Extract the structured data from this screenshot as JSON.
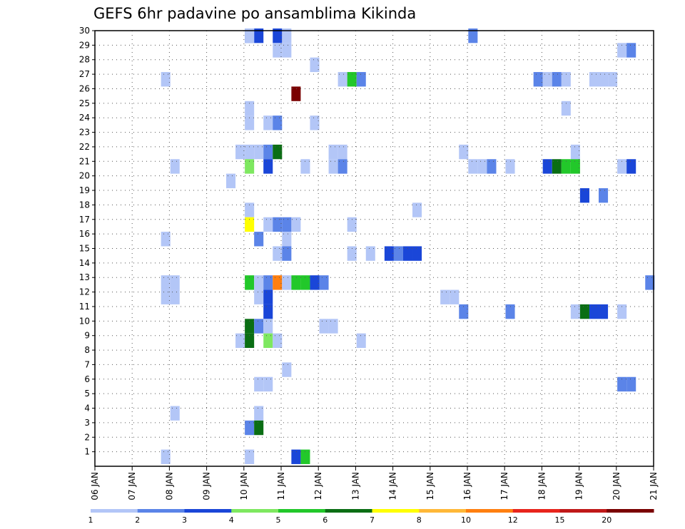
{
  "chart_data": {
    "type": "heatmap",
    "title": "GEFS 6hr padavine po ansamblima Kikinda",
    "xlabel": "",
    "ylabel": "",
    "x_ticks": [
      "06 JAN",
      "07 JAN",
      "08 JAN",
      "09 JAN",
      "10 JAN",
      "11 JAN",
      "12 JAN",
      "13 JAN",
      "14 JAN",
      "15 JAN",
      "16 JAN",
      "17 JAN",
      "18 JAN",
      "19 JAN",
      "20 JAN",
      "21 JAN"
    ],
    "y_ticks": [
      "1",
      "2",
      "3",
      "4",
      "5",
      "6",
      "7",
      "8",
      "9",
      "10",
      "11",
      "12",
      "13",
      "14",
      "15",
      "16",
      "17",
      "18",
      "19",
      "20",
      "21",
      "22",
      "23",
      "24",
      "25",
      "26",
      "27",
      "28",
      "29",
      "30"
    ],
    "xlim_steps": [
      0,
      60
    ],
    "ylim": [
      0,
      30
    ],
    "grid": true,
    "colorbar": {
      "labels": [
        "1",
        "2",
        "3",
        "4",
        "5",
        "6",
        "7",
        "8",
        "10",
        "12",
        "15",
        "20"
      ],
      "colors": [
        "#b3c6f7",
        "#5b84e8",
        "#1a46d8",
        "#7ee860",
        "#22c82a",
        "#0a6e14",
        "#ffff00",
        "#ffb838",
        "#ff7f10",
        "#e8241c",
        "#c01818",
        "#7a0000"
      ]
    },
    "cells": [
      [
        17,
        30,
        3
      ],
      [
        19,
        30,
        3
      ],
      [
        16,
        30,
        2
      ],
      [
        16,
        30,
        1
      ],
      [
        20,
        30,
        1
      ],
      [
        40,
        30,
        2
      ],
      [
        19,
        29,
        1
      ],
      [
        20,
        29,
        1
      ],
      [
        56,
        29,
        1
      ],
      [
        57,
        29,
        2
      ],
      [
        23,
        28,
        1
      ],
      [
        7,
        27,
        1
      ],
      [
        26,
        27,
        1
      ],
      [
        27,
        27,
        5
      ],
      [
        28,
        27,
        2
      ],
      [
        47,
        27,
        2
      ],
      [
        48,
        27,
        1
      ],
      [
        49,
        27,
        2
      ],
      [
        50,
        27,
        1
      ],
      [
        53,
        27,
        1
      ],
      [
        54,
        27,
        1
      ],
      [
        55,
        27,
        1
      ],
      [
        21,
        26,
        12
      ],
      [
        16,
        25,
        1
      ],
      [
        50,
        25,
        1
      ],
      [
        16,
        24,
        1
      ],
      [
        18,
        24,
        1
      ],
      [
        19,
        24,
        2
      ],
      [
        23,
        24,
        1
      ],
      [
        15,
        22,
        1
      ],
      [
        16,
        22,
        1
      ],
      [
        17,
        22,
        1
      ],
      [
        18,
        22,
        2
      ],
      [
        19,
        22,
        6
      ],
      [
        25,
        22,
        1
      ],
      [
        26,
        22,
        1
      ],
      [
        39,
        22,
        1
      ],
      [
        51,
        22,
        1
      ],
      [
        8,
        21,
        1
      ],
      [
        16,
        21,
        4
      ],
      [
        18,
        21,
        3
      ],
      [
        22,
        21,
        1
      ],
      [
        25,
        21,
        1
      ],
      [
        26,
        21,
        2
      ],
      [
        40,
        21,
        1
      ],
      [
        41,
        21,
        1
      ],
      [
        42,
        21,
        2
      ],
      [
        44,
        21,
        1
      ],
      [
        48,
        21,
        3
      ],
      [
        49,
        21,
        6
      ],
      [
        50,
        21,
        5
      ],
      [
        51,
        21,
        5
      ],
      [
        56,
        21,
        1
      ],
      [
        57,
        21,
        3
      ],
      [
        14,
        20,
        1
      ],
      [
        52,
        19,
        3
      ],
      [
        54,
        19,
        2
      ],
      [
        16,
        18,
        1
      ],
      [
        34,
        18,
        1
      ],
      [
        16,
        17,
        7
      ],
      [
        18,
        17,
        1
      ],
      [
        19,
        17,
        2
      ],
      [
        20,
        17,
        2
      ],
      [
        21,
        17,
        1
      ],
      [
        27,
        17,
        1
      ],
      [
        7,
        16,
        1
      ],
      [
        17,
        16,
        2
      ],
      [
        20,
        16,
        1
      ],
      [
        19,
        15,
        1
      ],
      [
        20,
        15,
        2
      ],
      [
        27,
        15,
        1
      ],
      [
        29,
        15,
        1
      ],
      [
        31,
        15,
        3
      ],
      [
        32,
        15,
        2
      ],
      [
        33,
        15,
        3
      ],
      [
        34,
        15,
        3
      ],
      [
        7,
        13,
        1
      ],
      [
        8,
        13,
        1
      ],
      [
        16,
        13,
        5
      ],
      [
        17,
        13,
        1
      ],
      [
        18,
        13,
        2
      ],
      [
        19,
        13,
        9
      ],
      [
        20,
        13,
        1
      ],
      [
        21,
        13,
        5
      ],
      [
        22,
        13,
        5
      ],
      [
        23,
        13,
        3
      ],
      [
        24,
        13,
        2
      ],
      [
        59,
        13,
        2
      ],
      [
        7,
        12,
        1
      ],
      [
        8,
        12,
        1
      ],
      [
        17,
        12,
        1
      ],
      [
        18,
        12,
        3
      ],
      [
        37,
        12,
        1
      ],
      [
        38,
        12,
        1
      ],
      [
        18,
        11,
        3
      ],
      [
        39,
        11,
        2
      ],
      [
        44,
        11,
        2
      ],
      [
        51,
        11,
        1
      ],
      [
        52,
        11,
        6
      ],
      [
        53,
        11,
        3
      ],
      [
        54,
        11,
        3
      ],
      [
        56,
        11,
        1
      ],
      [
        16,
        10,
        6
      ],
      [
        17,
        10,
        2
      ],
      [
        18,
        10,
        1
      ],
      [
        24,
        10,
        1
      ],
      [
        25,
        10,
        1
      ],
      [
        15,
        9,
        1
      ],
      [
        16,
        9,
        6
      ],
      [
        18,
        9,
        4
      ],
      [
        19,
        9,
        1
      ],
      [
        28,
        9,
        1
      ],
      [
        20,
        7,
        1
      ],
      [
        17,
        6,
        1
      ],
      [
        18,
        6,
        1
      ],
      [
        56,
        6,
        2
      ],
      [
        57,
        6,
        2
      ],
      [
        8,
        4,
        1
      ],
      [
        17,
        4,
        1
      ],
      [
        16,
        3,
        2
      ],
      [
        17,
        3,
        6
      ],
      [
        7,
        1,
        1
      ],
      [
        16,
        1,
        1
      ],
      [
        21,
        1,
        3
      ],
      [
        22,
        1,
        5
      ]
    ]
  }
}
